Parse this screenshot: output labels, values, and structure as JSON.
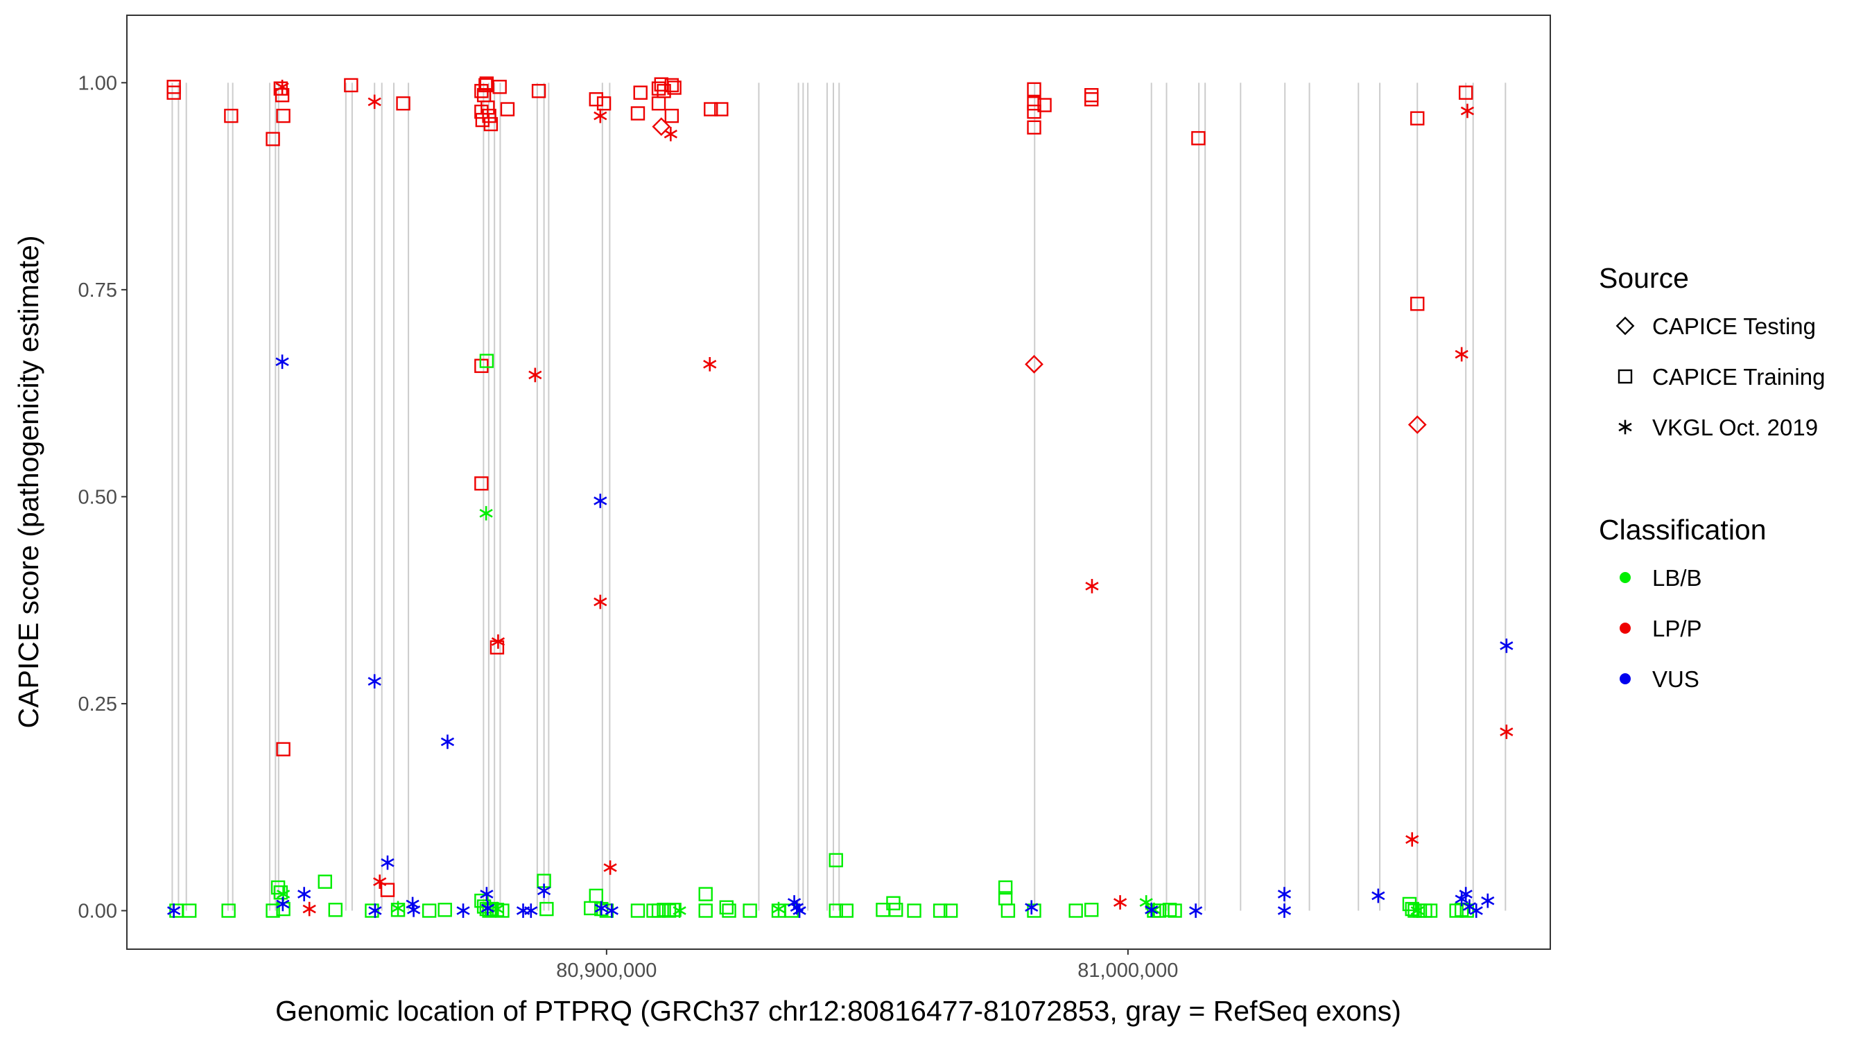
{
  "chart_data": {
    "type": "scatter",
    "title": "",
    "xlabel": "Genomic location of PTPRQ (GRCh37 chr12:80816477-81072853, gray = RefSeq exons)",
    "ylabel": "CAPICE score (pathogenicity estimate)",
    "xlim": [
      80808000,
      81081000
    ],
    "ylim": [
      -0.0465,
      1.0815
    ],
    "x_ticks": [
      {
        "value": 80900000,
        "label": "80,900,000"
      },
      {
        "value": 81000000,
        "label": "81,000,000"
      }
    ],
    "y_ticks": [
      {
        "value": 0.0,
        "label": "0.00"
      },
      {
        "value": 0.25,
        "label": "0.25"
      },
      {
        "value": 0.5,
        "label": "0.50"
      },
      {
        "value": 0.75,
        "label": "0.75"
      },
      {
        "value": 1.0,
        "label": "1.00"
      }
    ],
    "grid": false,
    "exon_lines_x": [
      80816700,
      80817900,
      80819400,
      80827400,
      80828300,
      80835400,
      80836500,
      80837100,
      80850000,
      80851200,
      80855500,
      80856900,
      80859200,
      80862000,
      80876400,
      80877400,
      80878500,
      80879600,
      80886700,
      80888000,
      80888900,
      80899200,
      80900600,
      80929200,
      80936800,
      80937700,
      80938600,
      80942300,
      80943500,
      80944600,
      80982100,
      81004500,
      81007400,
      81013600,
      81014800,
      81021600,
      81030100,
      81034800,
      81044200,
      81048300,
      81055500,
      81064800,
      81066200,
      81072400
    ],
    "legend": {
      "position": "right",
      "source_title": "Source",
      "source_items": [
        {
          "name": "CAPICE Testing",
          "marker": "diamond"
        },
        {
          "name": "CAPICE Training",
          "marker": "square"
        },
        {
          "name": "VKGL Oct. 2019",
          "marker": "asterisk"
        }
      ],
      "class_title": "Classification",
      "class_items": [
        {
          "name": "LB/B",
          "color": "#00ee00"
        },
        {
          "name": "LP/P",
          "color": "#ee0000"
        },
        {
          "name": "VUS",
          "color": "#0000ee"
        }
      ]
    },
    "series": [
      {
        "source": "CAPICE Training",
        "classification": "LP/P",
        "marker": "square",
        "color": "#ee0000",
        "points": [
          [
            80817000,
            0.995
          ],
          [
            80817000,
            0.988
          ],
          [
            80828000,
            0.96
          ],
          [
            80836000,
            0.932
          ],
          [
            80837500,
            0.993
          ],
          [
            80837800,
            0.985
          ],
          [
            80838000,
            0.96
          ],
          [
            80838000,
            0.195
          ],
          [
            80851000,
            0.997
          ],
          [
            80858000,
            0.025
          ],
          [
            80861000,
            0.975
          ],
          [
            80876000,
            0.99
          ],
          [
            80876000,
            0.965
          ],
          [
            80876200,
            0.955
          ],
          [
            80876500,
            0.985
          ],
          [
            80876800,
            0.997
          ],
          [
            80877000,
            0.999
          ],
          [
            80877200,
            0.97
          ],
          [
            80877500,
            0.96
          ],
          [
            80877800,
            0.95
          ],
          [
            80876000,
            0.658
          ],
          [
            80876000,
            0.516
          ],
          [
            80879000,
            0.318
          ],
          [
            80879500,
            0.995
          ],
          [
            80881000,
            0.968
          ],
          [
            80887000,
            0.99
          ],
          [
            80898000,
            0.98
          ],
          [
            80899500,
            0.975
          ],
          [
            80906000,
            0.963
          ],
          [
            80906500,
            0.988
          ],
          [
            80910000,
            0.993
          ],
          [
            80910000,
            0.975
          ],
          [
            80910500,
            0.998
          ],
          [
            80911000,
            0.99
          ],
          [
            80912500,
            0.96
          ],
          [
            80912500,
            0.997
          ],
          [
            80913000,
            0.994
          ],
          [
            80920000,
            0.968
          ],
          [
            80922000,
            0.968
          ],
          [
            80982000,
            0.992
          ],
          [
            80982000,
            0.975
          ],
          [
            80982000,
            0.965
          ],
          [
            80982000,
            0.946
          ],
          [
            80984000,
            0.973
          ],
          [
            80993000,
            0.985
          ],
          [
            80993000,
            0.98
          ],
          [
            81013500,
            0.933
          ],
          [
            81055500,
            0.957
          ],
          [
            81055500,
            0.733
          ],
          [
            81064800,
            0.988
          ]
        ]
      },
      {
        "source": "CAPICE Testing",
        "classification": "LP/P",
        "marker": "diamond",
        "color": "#ee0000",
        "points": [
          [
            80910500,
            0.947
          ],
          [
            80982000,
            0.66
          ],
          [
            81055500,
            0.587
          ]
        ]
      },
      {
        "source": "VKGL Oct. 2019",
        "classification": "LP/P",
        "marker": "asterisk",
        "color": "#ee0000",
        "points": [
          [
            80837800,
            0.995
          ],
          [
            80843000,
            0.002
          ],
          [
            80855500,
            0.977
          ],
          [
            80856500,
            0.035
          ],
          [
            80879200,
            0.325
          ],
          [
            80886300,
            0.647
          ],
          [
            80898800,
            0.96
          ],
          [
            80898800,
            0.373
          ],
          [
            80900700,
            0.052
          ],
          [
            80912300,
            0.938
          ],
          [
            80919800,
            0.66
          ],
          [
            80993100,
            0.392
          ],
          [
            80998500,
            0.01
          ],
          [
            81054500,
            0.086
          ],
          [
            81064000,
            0.672
          ],
          [
            81065100,
            0.966
          ],
          [
            81072600,
            0.216
          ]
        ]
      },
      {
        "source": "CAPICE Training",
        "classification": "LB/B",
        "marker": "square",
        "color": "#00ee00",
        "points": [
          [
            80817500,
            0.0
          ],
          [
            80820000,
            0.0
          ],
          [
            80827500,
            0.0
          ],
          [
            80836000,
            0.0
          ],
          [
            80837000,
            0.028
          ],
          [
            80837500,
            0.022
          ],
          [
            80838000,
            0.002
          ],
          [
            80846000,
            0.035
          ],
          [
            80848000,
            0.001
          ],
          [
            80855000,
            0.0
          ],
          [
            80860000,
            0.001
          ],
          [
            80866000,
            0.0
          ],
          [
            80869000,
            0.001
          ],
          [
            80877000,
            0.664
          ],
          [
            80876000,
            0.012
          ],
          [
            80876500,
            0.005
          ],
          [
            80877000,
            0.002
          ],
          [
            80877500,
            0.0
          ],
          [
            80878000,
            0.002
          ],
          [
            80879000,
            0.001
          ],
          [
            80880000,
            0.0
          ],
          [
            80888000,
            0.036
          ],
          [
            80888500,
            0.002
          ],
          [
            80897000,
            0.003
          ],
          [
            80898000,
            0.018
          ],
          [
            80899000,
            0.002
          ],
          [
            80900000,
            0.0
          ],
          [
            80906000,
            0.0
          ],
          [
            80909000,
            0.0
          ],
          [
            80910000,
            0.0
          ],
          [
            80911000,
            0.001
          ],
          [
            80912000,
            0.0
          ],
          [
            80913000,
            0.001
          ],
          [
            80919000,
            0.02
          ],
          [
            80919000,
            0.0
          ],
          [
            80923000,
            0.004
          ],
          [
            80923500,
            0.0
          ],
          [
            80927500,
            0.0
          ],
          [
            80933000,
            0.0
          ],
          [
            80935500,
            0.0
          ],
          [
            80944000,
            0.061
          ],
          [
            80944000,
            0.0
          ],
          [
            80946000,
            0.0
          ],
          [
            80953000,
            0.001
          ],
          [
            80955000,
            0.009
          ],
          [
            80955500,
            0.001
          ],
          [
            80959000,
            0.0
          ],
          [
            80964000,
            0.0
          ],
          [
            80966000,
            0.0
          ],
          [
            80976500,
            0.028
          ],
          [
            80976500,
            0.015
          ],
          [
            80977000,
            0.0
          ],
          [
            80982000,
            0.0
          ],
          [
            80990000,
            0.0
          ],
          [
            80993000,
            0.001
          ],
          [
            81005000,
            0.0
          ],
          [
            81006000,
            0.0
          ],
          [
            81008000,
            0.001
          ],
          [
            81009000,
            0.0
          ],
          [
            81054000,
            0.008
          ],
          [
            81054500,
            0.002
          ],
          [
            81055000,
            0.0
          ],
          [
            81056000,
            0.0
          ],
          [
            81057000,
            0.0
          ],
          [
            81058000,
            0.0
          ],
          [
            81063000,
            0.0
          ],
          [
            81064000,
            0.001
          ],
          [
            81065000,
            0.0
          ]
        ]
      },
      {
        "source": "VKGL Oct. 2019",
        "classification": "LB/B",
        "marker": "asterisk",
        "color": "#00ee00",
        "points": [
          [
            80838000,
            0.02
          ],
          [
            80860000,
            0.003
          ],
          [
            80876900,
            0.48
          ],
          [
            80879000,
            0.002
          ],
          [
            80914000,
            0.0
          ],
          [
            80933000,
            0.002
          ],
          [
            81003500,
            0.01
          ],
          [
            81005000,
            0.001
          ],
          [
            81055500,
            0.0
          ]
        ]
      },
      {
        "source": "VKGL Oct. 2019",
        "classification": "VUS",
        "marker": "asterisk",
        "color": "#0000ee",
        "points": [
          [
            80817000,
            0.0
          ],
          [
            80837800,
            0.663
          ],
          [
            80837900,
            0.008
          ],
          [
            80842000,
            0.02
          ],
          [
            80855500,
            0.277
          ],
          [
            80855600,
            0.0
          ],
          [
            80858000,
            0.058
          ],
          [
            80862800,
            0.008
          ],
          [
            80863000,
            0.001
          ],
          [
            80869500,
            0.204
          ],
          [
            80872500,
            0.0
          ],
          [
            80877000,
            0.02
          ],
          [
            80877200,
            0.003
          ],
          [
            80884000,
            0.0
          ],
          [
            80885500,
            0.0
          ],
          [
            80888000,
            0.024
          ],
          [
            80898800,
            0.495
          ],
          [
            80899000,
            0.003
          ],
          [
            80901000,
            0.0
          ],
          [
            80936000,
            0.01
          ],
          [
            80936500,
            0.004
          ],
          [
            80937000,
            0.0
          ],
          [
            80981500,
            0.004
          ],
          [
            81004500,
            0.001
          ],
          [
            81013000,
            0.0
          ],
          [
            81030000,
            0.02
          ],
          [
            81030000,
            0.0
          ],
          [
            81048000,
            0.018
          ],
          [
            81064000,
            0.014
          ],
          [
            81064800,
            0.02
          ],
          [
            81065500,
            0.005
          ],
          [
            81066800,
            0.0
          ],
          [
            81069000,
            0.012
          ],
          [
            81072600,
            0.32
          ]
        ]
      }
    ]
  }
}
